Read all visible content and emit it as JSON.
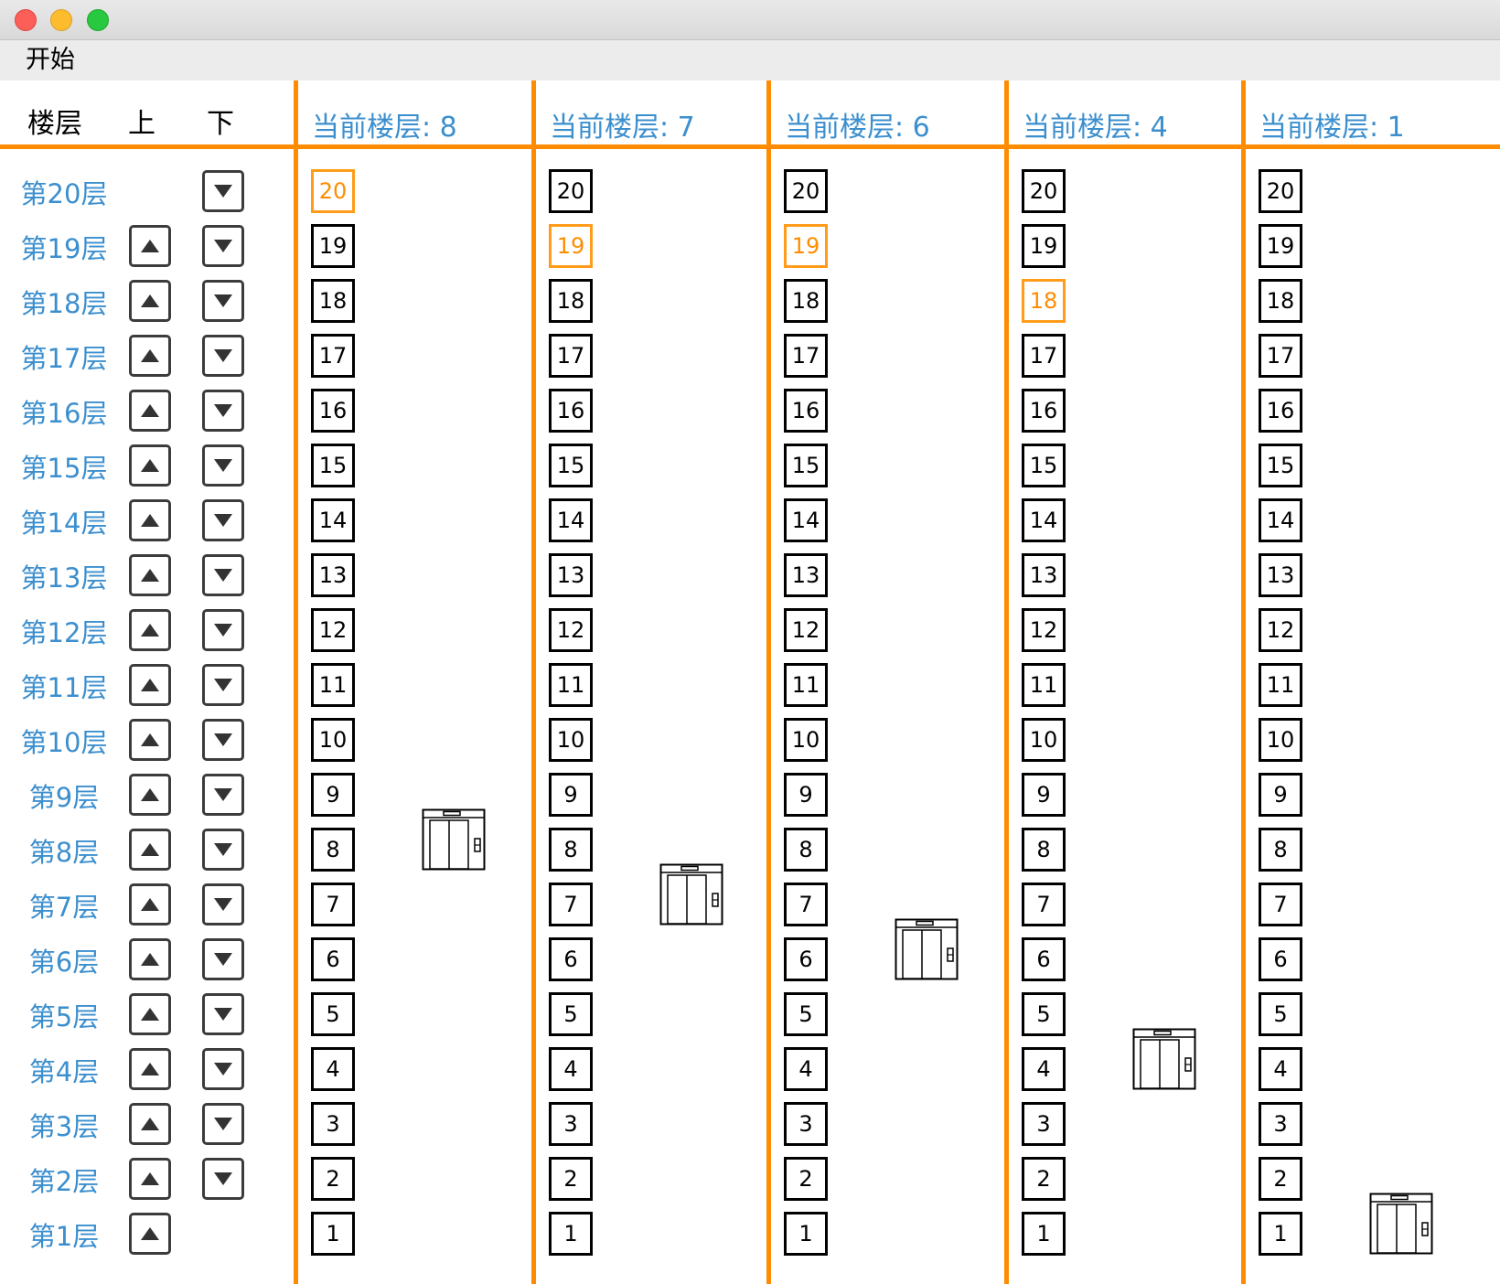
{
  "window": {
    "controls": [
      "close",
      "minimize",
      "maximize"
    ],
    "colors": {
      "accent": "#ff8c00",
      "label_blue": "#3c8fce",
      "active_floor": "#ff9c1a"
    }
  },
  "menu": {
    "start": "开始"
  },
  "header": {
    "floor": "楼层",
    "up": "上",
    "down": "下"
  },
  "floors": [
    {
      "label": "第20层",
      "number": 20,
      "up": false,
      "down": true
    },
    {
      "label": "第19层",
      "number": 19,
      "up": true,
      "down": true
    },
    {
      "label": "第18层",
      "number": 18,
      "up": true,
      "down": true
    },
    {
      "label": "第17层",
      "number": 17,
      "up": true,
      "down": true
    },
    {
      "label": "第16层",
      "number": 16,
      "up": true,
      "down": true
    },
    {
      "label": "第15层",
      "number": 15,
      "up": true,
      "down": true
    },
    {
      "label": "第14层",
      "number": 14,
      "up": true,
      "down": true
    },
    {
      "label": "第13层",
      "number": 13,
      "up": true,
      "down": true
    },
    {
      "label": "第12层",
      "number": 12,
      "up": true,
      "down": true
    },
    {
      "label": "第11层",
      "number": 11,
      "up": true,
      "down": true
    },
    {
      "label": "第10层",
      "number": 10,
      "up": true,
      "down": true
    },
    {
      "label": "第9层",
      "number": 9,
      "up": true,
      "down": true
    },
    {
      "label": "第8层",
      "number": 8,
      "up": true,
      "down": true
    },
    {
      "label": "第7层",
      "number": 7,
      "up": true,
      "down": true
    },
    {
      "label": "第6层",
      "number": 6,
      "up": true,
      "down": true
    },
    {
      "label": "第5层",
      "number": 5,
      "up": true,
      "down": true
    },
    {
      "label": "第4层",
      "number": 4,
      "up": true,
      "down": true
    },
    {
      "label": "第3层",
      "number": 3,
      "up": true,
      "down": true
    },
    {
      "label": "第2层",
      "number": 2,
      "up": true,
      "down": true
    },
    {
      "label": "第1层",
      "number": 1,
      "up": true,
      "down": false
    }
  ],
  "elevators": [
    {
      "title": "当前楼层: 8",
      "current_floor": 8,
      "active_floors": [
        20
      ]
    },
    {
      "title": "当前楼层: 7",
      "current_floor": 7,
      "active_floors": [
        19
      ]
    },
    {
      "title": "当前楼层: 6",
      "current_floor": 6,
      "active_floors": [
        19
      ]
    },
    {
      "title": "当前楼层: 4",
      "current_floor": 4,
      "active_floors": [
        18
      ]
    },
    {
      "title": "当前楼层: 1",
      "current_floor": 1,
      "active_floors": []
    }
  ],
  "icons": {
    "up": "triangle-up-icon",
    "down": "triangle-down-icon",
    "elevator": "elevator-car-icon"
  }
}
